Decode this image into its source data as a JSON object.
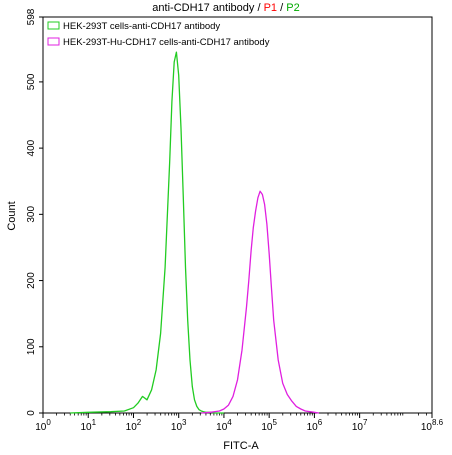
{
  "chart_data": {
    "type": "line",
    "title": {
      "main": "anti-CDH17 antibody",
      "sep1": " / ",
      "p1": "P1",
      "sep2": " / ",
      "p2": "P2"
    },
    "xlabel": "FITC-A",
    "ylabel": "Count",
    "x_scale": "log10",
    "xlim": [
      1,
      398107170.55
    ],
    "ylim": [
      0,
      598
    ],
    "x_ticks": [
      {
        "exp": 0,
        "base": "10",
        "sup": "0"
      },
      {
        "exp": 1,
        "base": "10",
        "sup": "1"
      },
      {
        "exp": 2,
        "base": "10",
        "sup": "2"
      },
      {
        "exp": 3,
        "base": "10",
        "sup": "3"
      },
      {
        "exp": 4,
        "base": "10",
        "sup": "4"
      },
      {
        "exp": 5,
        "base": "10",
        "sup": "5"
      },
      {
        "exp": 6,
        "base": "10",
        "sup": "6"
      },
      {
        "exp": 7,
        "base": "10",
        "sup": "7"
      },
      {
        "exp": 8.6,
        "base": "10",
        "sup": "8.6"
      }
    ],
    "y_ticks": [
      0,
      100,
      200,
      300,
      400,
      500,
      598
    ],
    "grid": false,
    "legend_position": "top-left",
    "colors": {
      "P1": "#ff0000",
      "P2": "#00aa00"
    },
    "series": [
      {
        "name": "HEK-293T cells-anti-CDH17 antibody",
        "color": "#22cc22",
        "log_x": [
          0.6,
          1.0,
          1.5,
          1.8,
          2.0,
          2.1,
          2.2,
          2.3,
          2.4,
          2.5,
          2.6,
          2.7,
          2.8,
          2.85,
          2.9,
          2.95,
          3.0,
          3.05,
          3.1,
          3.15,
          3.2,
          3.25,
          3.3,
          3.35,
          3.4,
          3.45,
          3.5,
          3.55,
          3.6,
          3.7,
          3.8,
          3.9,
          4.0
        ],
        "y": [
          0,
          1,
          2,
          3,
          8,
          15,
          25,
          20,
          35,
          65,
          120,
          220,
          380,
          470,
          530,
          545,
          510,
          430,
          330,
          220,
          140,
          80,
          40,
          20,
          10,
          5,
          3,
          2,
          1,
          1,
          0,
          0,
          0
        ]
      },
      {
        "name": "HEK-293T-Hu-CDH17 cells-anti-CDH17 antibody",
        "color": "#e020e0",
        "log_x": [
          3.5,
          3.7,
          3.9,
          4.0,
          4.1,
          4.2,
          4.3,
          4.4,
          4.5,
          4.55,
          4.6,
          4.65,
          4.7,
          4.75,
          4.8,
          4.85,
          4.9,
          4.95,
          5.0,
          5.05,
          5.1,
          5.2,
          5.3,
          5.4,
          5.5,
          5.6,
          5.7,
          5.8,
          5.9,
          6.0,
          6.1
        ],
        "y": [
          0,
          1,
          3,
          6,
          12,
          25,
          50,
          95,
          160,
          200,
          245,
          280,
          305,
          325,
          335,
          330,
          315,
          285,
          240,
          190,
          140,
          80,
          45,
          28,
          18,
          10,
          6,
          3,
          2,
          1,
          0
        ]
      }
    ]
  }
}
